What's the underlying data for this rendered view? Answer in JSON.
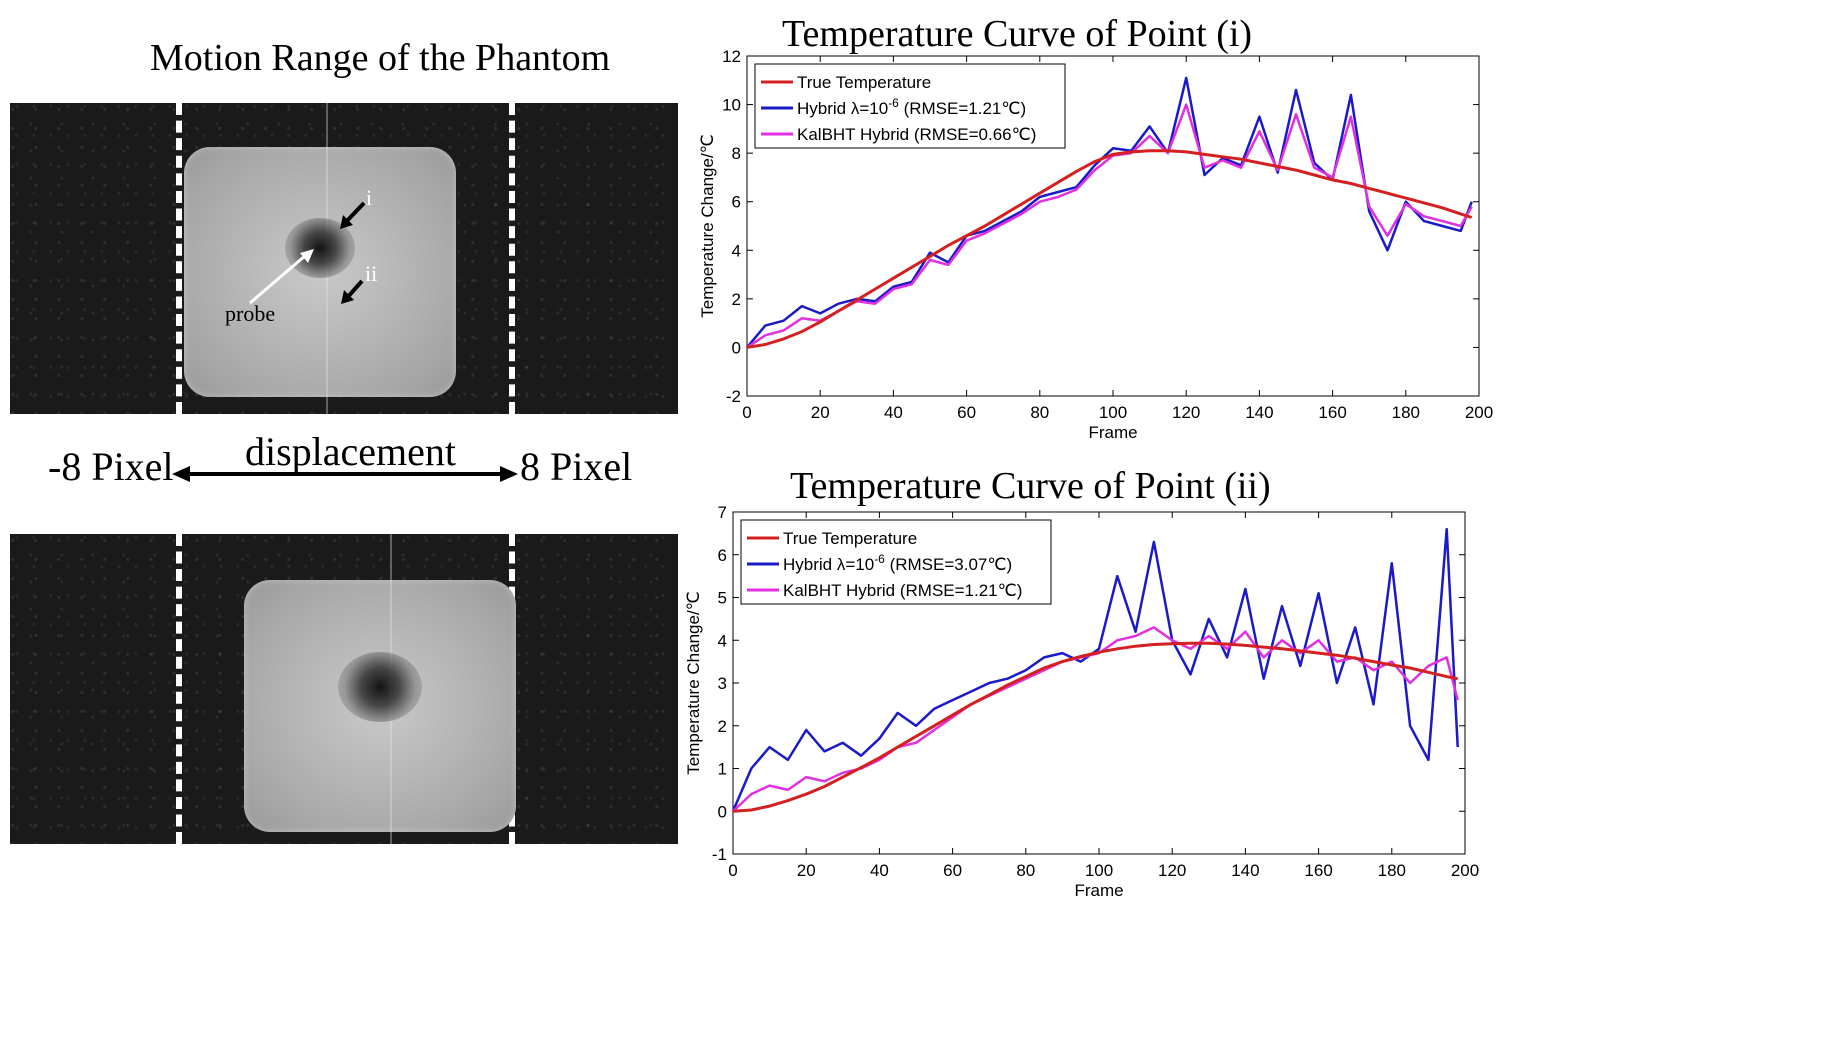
{
  "left_panel": {
    "title": "Motion Range of the Phantom",
    "labels": {
      "point_i": "i",
      "point_ii": "ii",
      "probe": "probe",
      "displacement": "displacement",
      "min_shift": "-8 Pixel",
      "max_shift": "8 Pixel"
    },
    "colors": {
      "background": "#1a1a1a",
      "dash": "#ffffff"
    }
  },
  "chart_data": [
    {
      "type": "line",
      "title": "Temperature Curve of Point (i)",
      "xlabel": "Frame",
      "ylabel": "Temperature Change/℃",
      "xlim": [
        0,
        200
      ],
      "ylim": [
        -2,
        12
      ],
      "xticks": [
        0,
        20,
        40,
        60,
        80,
        100,
        120,
        140,
        160,
        180,
        200
      ],
      "yticks": [
        -2,
        0,
        2,
        4,
        6,
        8,
        10,
        12
      ],
      "legend_position": "top-left",
      "x": [
        0,
        5,
        10,
        15,
        20,
        25,
        30,
        35,
        40,
        45,
        50,
        55,
        60,
        65,
        70,
        75,
        80,
        85,
        90,
        95,
        100,
        105,
        110,
        115,
        120,
        125,
        130,
        135,
        140,
        145,
        150,
        155,
        160,
        165,
        170,
        175,
        180,
        185,
        190,
        195,
        198
      ],
      "series": [
        {
          "name": "True Temperature",
          "color": "#d42020",
          "values": [
            0,
            0.12,
            0.35,
            0.65,
            1.05,
            1.5,
            1.95,
            2.4,
            2.85,
            3.3,
            3.75,
            4.2,
            4.6,
            5.0,
            5.45,
            5.9,
            6.35,
            6.8,
            7.25,
            7.65,
            7.95,
            8.05,
            8.1,
            8.1,
            8.05,
            7.95,
            7.85,
            7.75,
            7.6,
            7.45,
            7.3,
            7.1,
            6.9,
            6.75,
            6.55,
            6.35,
            6.15,
            5.95,
            5.75,
            5.5,
            5.35
          ]
        },
        {
          "name": "Hybrid λ=10",
          "sup": "-6",
          "suffix": " (RMSE=1.21℃)",
          "color": "#1a1ac8",
          "values": [
            0,
            0.9,
            1.1,
            1.7,
            1.4,
            1.8,
            2.0,
            1.9,
            2.5,
            2.7,
            3.9,
            3.5,
            4.6,
            4.8,
            5.2,
            5.6,
            6.2,
            6.4,
            6.6,
            7.5,
            8.2,
            8.1,
            9.1,
            8.0,
            11.1,
            7.1,
            7.8,
            7.5,
            9.5,
            7.2,
            10.6,
            7.6,
            6.9,
            10.4,
            5.6,
            4.0,
            6.0,
            5.2,
            5.0,
            4.8,
            6.0
          ]
        },
        {
          "name": "KalBHT Hybrid",
          "suffix": " (RMSE=0.66℃)",
          "color": "#e030e0",
          "values": [
            0,
            0.5,
            0.7,
            1.2,
            1.1,
            1.5,
            1.9,
            1.8,
            2.4,
            2.6,
            3.6,
            3.4,
            4.4,
            4.7,
            5.1,
            5.5,
            6.0,
            6.2,
            6.5,
            7.3,
            7.9,
            8.0,
            8.7,
            8.0,
            10.0,
            7.4,
            7.7,
            7.4,
            8.9,
            7.3,
            9.6,
            7.4,
            7.0,
            9.5,
            5.8,
            4.6,
            5.9,
            5.4,
            5.2,
            5.0,
            5.8
          ]
        }
      ]
    },
    {
      "type": "line",
      "title": "Temperature Curve of Point (ii)",
      "xlabel": "Frame",
      "ylabel": "Temperature Change/℃",
      "xlim": [
        0,
        200
      ],
      "ylim": [
        -1,
        7
      ],
      "xticks": [
        0,
        20,
        40,
        60,
        80,
        100,
        120,
        140,
        160,
        180,
        200
      ],
      "yticks": [
        -1,
        0,
        1,
        2,
        3,
        4,
        5,
        6,
        7
      ],
      "legend_position": "top-left",
      "x": [
        0,
        5,
        10,
        15,
        20,
        25,
        30,
        35,
        40,
        45,
        50,
        55,
        60,
        65,
        70,
        75,
        80,
        85,
        90,
        95,
        100,
        105,
        110,
        115,
        120,
        125,
        130,
        135,
        140,
        145,
        150,
        155,
        160,
        165,
        170,
        175,
        180,
        185,
        190,
        195,
        198
      ],
      "series": [
        {
          "name": "True Temperature",
          "color": "#d42020",
          "values": [
            0,
            0.03,
            0.12,
            0.25,
            0.4,
            0.58,
            0.8,
            1.02,
            1.25,
            1.5,
            1.75,
            2.0,
            2.25,
            2.5,
            2.72,
            2.95,
            3.15,
            3.35,
            3.5,
            3.62,
            3.72,
            3.8,
            3.86,
            3.9,
            3.92,
            3.93,
            3.93,
            3.91,
            3.88,
            3.84,
            3.8,
            3.75,
            3.7,
            3.65,
            3.58,
            3.5,
            3.42,
            3.35,
            3.25,
            3.15,
            3.1
          ]
        },
        {
          "name": "Hybrid λ=10",
          "sup": "-6",
          "suffix": " (RMSE=3.07℃)",
          "color": "#1a1ac8",
          "values": [
            0,
            1.0,
            1.5,
            1.2,
            1.9,
            1.4,
            1.6,
            1.3,
            1.7,
            2.3,
            2.0,
            2.4,
            2.6,
            2.8,
            3.0,
            3.1,
            3.3,
            3.6,
            3.7,
            3.5,
            3.8,
            5.5,
            4.2,
            6.3,
            4.0,
            3.2,
            4.5,
            3.6,
            5.2,
            3.1,
            4.8,
            3.4,
            5.1,
            3.0,
            4.3,
            2.5,
            5.8,
            2.0,
            1.2,
            6.6,
            1.5
          ]
        },
        {
          "name": "KalBHT Hybrid",
          "suffix": " (RMSE=1.21℃)",
          "color": "#e030e0",
          "values": [
            0,
            0.4,
            0.6,
            0.5,
            0.8,
            0.7,
            0.9,
            1.0,
            1.2,
            1.5,
            1.6,
            1.9,
            2.2,
            2.5,
            2.7,
            2.9,
            3.1,
            3.3,
            3.5,
            3.6,
            3.7,
            4.0,
            4.1,
            4.3,
            4.0,
            3.8,
            4.1,
            3.8,
            4.2,
            3.6,
            4.0,
            3.7,
            4.0,
            3.5,
            3.6,
            3.3,
            3.5,
            3.0,
            3.4,
            3.6,
            2.6
          ]
        }
      ]
    }
  ]
}
